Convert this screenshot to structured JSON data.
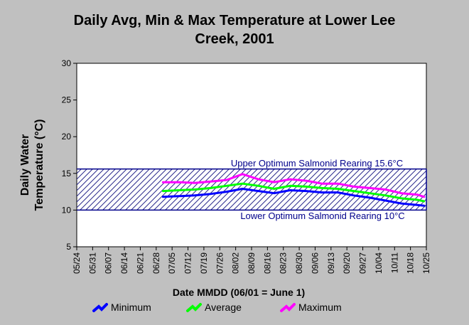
{
  "chart_data": {
    "type": "line",
    "title_line1": "Daily Avg, Min & Max Temperature at Lower Lee",
    "title_line2": "Creek, 2001",
    "xlabel": "Date MMDD (06/01 = June 1)",
    "ylabel_line1": "Daily Water",
    "ylabel_line2": "Temperature (°C)",
    "ylim": [
      5,
      30
    ],
    "yticks": [
      5,
      10,
      15,
      20,
      25,
      30
    ],
    "xticks": [
      "05/24",
      "05/31",
      "06/07",
      "06/14",
      "06/21",
      "06/28",
      "07/05",
      "07/12",
      "07/19",
      "07/26",
      "08/02",
      "08/09",
      "08/16",
      "08/23",
      "08/30",
      "09/06",
      "09/13",
      "09/20",
      "09/27",
      "10/04",
      "10/11",
      "10/18",
      "10/25"
    ],
    "band": {
      "lower": 10,
      "upper": 15.6,
      "upper_label": "Upper Optimum Salmonid Rearing 15.6°C",
      "lower_label": "Lower Optimum Salmonid Rearing 10°C"
    },
    "x": [
      "07/01",
      "07/08",
      "07/15",
      "07/22",
      "07/29",
      "08/05",
      "08/12",
      "08/19",
      "08/26",
      "09/02",
      "09/09",
      "09/16",
      "09/23",
      "09/30",
      "10/07",
      "10/14",
      "10/21",
      "10/24"
    ],
    "series": [
      {
        "name": "Minimum",
        "color": "#0000ff",
        "values": [
          11.8,
          11.9,
          12.0,
          12.2,
          12.5,
          12.9,
          12.6,
          12.3,
          12.7,
          12.6,
          12.4,
          12.4,
          12.0,
          11.7,
          11.3,
          10.9,
          10.7,
          10.6
        ]
      },
      {
        "name": "Average",
        "color": "#00ff00",
        "values": [
          12.6,
          12.7,
          12.8,
          13.0,
          13.3,
          13.6,
          13.3,
          12.9,
          13.3,
          13.2,
          13.0,
          12.9,
          12.6,
          12.3,
          12.0,
          11.6,
          11.4,
          11.2
        ]
      },
      {
        "name": "Maximum",
        "color": "#ff00ff",
        "values": [
          13.8,
          13.8,
          13.7,
          13.9,
          14.1,
          14.9,
          14.2,
          13.8,
          14.2,
          14.0,
          13.6,
          13.6,
          13.2,
          13.0,
          12.8,
          12.3,
          12.1,
          11.8
        ]
      }
    ],
    "legend": [
      "Minimum",
      "Average",
      "Maximum"
    ],
    "legend_position": "bottom",
    "grid": false
  }
}
